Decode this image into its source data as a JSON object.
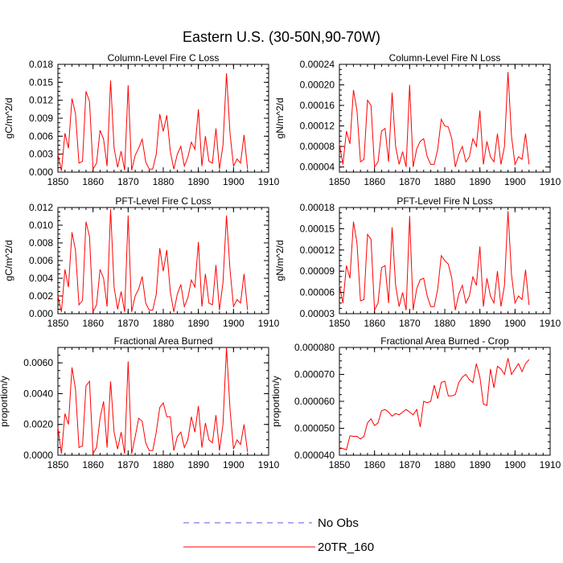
{
  "main_title": "Eastern U.S. (30-50N,90-70W)",
  "legend": [
    {
      "label": "No Obs",
      "color": "#5a5ae6",
      "dash": true
    },
    {
      "label": "20TR_160",
      "color": "#ff0000",
      "dash": false
    }
  ],
  "chart_data": [
    {
      "type": "line",
      "title": "Column-Level Fire C Loss",
      "ylabel": "gC/m^2/d",
      "xlim": [
        1850,
        1910
      ],
      "ylim": [
        0,
        0.018
      ],
      "xticks": [
        "1850",
        "1860",
        "1870",
        "1880",
        "1890",
        "1900",
        "1910"
      ],
      "yticks": [
        "0.000",
        "0.003",
        "0.006",
        "0.009",
        "0.012",
        "0.015",
        "0.018"
      ],
      "series": [
        {
          "name": "20TR_160",
          "color": "#ff0000",
          "x": [
            1850,
            1851,
            1852,
            1853,
            1854,
            1855,
            1856,
            1857,
            1858,
            1859,
            1860,
            1861,
            1862,
            1863,
            1864,
            1865,
            1866,
            1867,
            1868,
            1869,
            1870,
            1871,
            1872,
            1873,
            1874,
            1875,
            1876,
            1877,
            1878,
            1879,
            1880,
            1881,
            1882,
            1883,
            1884,
            1885,
            1886,
            1887,
            1888,
            1889,
            1890,
            1891,
            1892,
            1893,
            1894,
            1895,
            1896,
            1897,
            1898,
            1899,
            1900,
            1901,
            1902,
            1903,
            1904
          ],
          "y": [
            0.003,
            0.0002,
            0.0065,
            0.004,
            0.0123,
            0.0098,
            0.0015,
            0.0018,
            0.0135,
            0.0118,
            0.0005,
            0.0015,
            0.007,
            0.0055,
            0.001,
            0.0153,
            0.004,
            0.0008,
            0.0035,
            0.0003,
            0.0145,
            0.0003,
            0.0028,
            0.004,
            0.0055,
            0.0017,
            0.0005,
            0.0005,
            0.003,
            0.0097,
            0.0068,
            0.0095,
            0.0035,
            0.0005,
            0.003,
            0.0043,
            0.001,
            0.0025,
            0.005,
            0.0038,
            0.0105,
            0.001,
            0.006,
            0.0018,
            0.0015,
            0.0073,
            0.0005,
            0.0045,
            0.0165,
            0.0065,
            0.001,
            0.0022,
            0.0015,
            0.0062,
            0.0005
          ]
        }
      ]
    },
    {
      "type": "line",
      "title": "Column-Level Fire N Loss",
      "ylabel": "gN/m^2/d",
      "xlim": [
        1850,
        1910
      ],
      "ylim": [
        3e-05,
        0.00024
      ],
      "xticks": [
        "1850",
        "1860",
        "1870",
        "1880",
        "1890",
        "1900",
        "1910"
      ],
      "yticks": [
        "0.00004",
        "0.00008",
        "0.00012",
        "0.00016",
        "0.00020",
        "0.00024"
      ],
      "series": [
        {
          "name": "20TR_160",
          "color": "#ff0000",
          "x": [
            1850,
            1851,
            1852,
            1853,
            1854,
            1855,
            1856,
            1857,
            1858,
            1859,
            1860,
            1861,
            1862,
            1863,
            1864,
            1865,
            1866,
            1867,
            1868,
            1869,
            1870,
            1871,
            1872,
            1873,
            1874,
            1875,
            1876,
            1877,
            1878,
            1879,
            1880,
            1881,
            1882,
            1883,
            1884,
            1885,
            1886,
            1887,
            1888,
            1889,
            1890,
            1891,
            1892,
            1893,
            1894,
            1895,
            1896,
            1897,
            1898,
            1899,
            1900,
            1901,
            1902,
            1903,
            1904
          ],
          "y": [
            8.5e-05,
            4.5e-05,
            0.00011,
            8.5e-05,
            0.00019,
            0.00015,
            5e-05,
            5.5e-05,
            0.00017,
            0.00016,
            4e-05,
            5e-05,
            0.00011,
            0.000115,
            5e-05,
            0.000185,
            8e-05,
            4.5e-05,
            7e-05,
            4e-05,
            0.0002,
            4e-05,
            7.5e-05,
            9e-05,
            9.5e-05,
            6e-05,
            4.5e-05,
            4.5e-05,
            7.5e-05,
            0.000133,
            0.00012,
            0.000118,
            9.5e-05,
            4e-05,
            6.5e-05,
            8e-05,
            5e-05,
            6e-05,
            9.5e-05,
            8e-05,
            0.00015,
            4.5e-05,
            9e-05,
            6e-05,
            5e-05,
            0.000105,
            4.5e-05,
            8e-05,
            0.000225,
            0.0001,
            4.5e-05,
            6e-05,
            5.5e-05,
            0.000105,
            4.5e-05
          ]
        }
      ]
    },
    {
      "type": "line",
      "title": "PFT-Level Fire C Loss",
      "ylabel": "gC/m^2/d",
      "xlim": [
        1850,
        1910
      ],
      "ylim": [
        0,
        0.012
      ],
      "xticks": [
        "1850",
        "1860",
        "1870",
        "1880",
        "1890",
        "1900",
        "1910"
      ],
      "yticks": [
        "0.000",
        "0.002",
        "0.004",
        "0.006",
        "0.008",
        "0.010",
        "0.012"
      ],
      "series": [
        {
          "name": "20TR_160",
          "color": "#ff0000",
          "x": [
            1850,
            1851,
            1852,
            1853,
            1854,
            1855,
            1856,
            1857,
            1858,
            1859,
            1860,
            1861,
            1862,
            1863,
            1864,
            1865,
            1866,
            1867,
            1868,
            1869,
            1870,
            1871,
            1872,
            1873,
            1874,
            1875,
            1876,
            1877,
            1878,
            1879,
            1880,
            1881,
            1882,
            1883,
            1884,
            1885,
            1886,
            1887,
            1888,
            1889,
            1890,
            1891,
            1892,
            1893,
            1894,
            1895,
            1896,
            1897,
            1898,
            1899,
            1900,
            1901,
            1902,
            1903,
            1904
          ],
          "y": [
            0.002,
            0.0002,
            0.005,
            0.003,
            0.0092,
            0.0072,
            0.001,
            0.0015,
            0.0104,
            0.0087,
            0.0002,
            0.001,
            0.005,
            0.004,
            0.0008,
            0.0118,
            0.003,
            0.0005,
            0.0025,
            0.0002,
            0.0111,
            0.0002,
            0.002,
            0.0028,
            0.0042,
            0.0012,
            0.0004,
            0.0004,
            0.0022,
            0.0074,
            0.0048,
            0.0072,
            0.0025,
            0.0002,
            0.0022,
            0.0033,
            0.0008,
            0.0018,
            0.0038,
            0.003,
            0.0081,
            0.0008,
            0.0045,
            0.0012,
            0.001,
            0.0055,
            0.0004,
            0.0035,
            0.0111,
            0.005,
            0.0008,
            0.0016,
            0.0012,
            0.0045,
            0.0004
          ]
        }
      ]
    },
    {
      "type": "line",
      "title": "PFT-Level Fire N Loss",
      "ylabel": "gN/m^2/d",
      "xlim": [
        1850,
        1910
      ],
      "ylim": [
        3e-05,
        0.00018
      ],
      "xticks": [
        "1850",
        "1860",
        "1870",
        "1880",
        "1890",
        "1900",
        "1910"
      ],
      "yticks": [
        "0.00003",
        "0.00006",
        "0.00009",
        "0.00012",
        "0.00015",
        "0.00018"
      ],
      "series": [
        {
          "name": "20TR_160",
          "color": "#ff0000",
          "x": [
            1850,
            1851,
            1852,
            1853,
            1854,
            1855,
            1856,
            1857,
            1858,
            1859,
            1860,
            1861,
            1862,
            1863,
            1864,
            1865,
            1866,
            1867,
            1868,
            1869,
            1870,
            1871,
            1872,
            1873,
            1874,
            1875,
            1876,
            1877,
            1878,
            1879,
            1880,
            1881,
            1882,
            1883,
            1884,
            1885,
            1886,
            1887,
            1888,
            1889,
            1890,
            1891,
            1892,
            1893,
            1894,
            1895,
            1896,
            1897,
            1898,
            1899,
            1900,
            1901,
            1902,
            1903,
            1904
          ],
          "y": [
            7e-05,
            4.5e-05,
            9.8e-05,
            8e-05,
            0.00016,
            0.00013,
            4.8e-05,
            5e-05,
            0.000142,
            0.000135,
            3.5e-05,
            4.5e-05,
            9.5e-05,
            9.8e-05,
            4.5e-05,
            0.000152,
            7e-05,
            4e-05,
            6e-05,
            3.5e-05,
            0.000168,
            3.5e-05,
            6.5e-05,
            7.8e-05,
            8e-05,
            5.5e-05,
            4e-05,
            4e-05,
            6.5e-05,
            0.000112,
            0.000105,
            0.0001,
            8e-05,
            3.5e-05,
            5.8e-05,
            7e-05,
            4.5e-05,
            5.5e-05,
            8.2e-05,
            7e-05,
            0.000125,
            4e-05,
            8e-05,
            5.5e-05,
            4.5e-05,
            9e-05,
            4e-05,
            7e-05,
            0.000175,
            8.5e-05,
            4.5e-05,
            5.5e-05,
            5e-05,
            9.2e-05,
            4.2e-05
          ]
        }
      ]
    },
    {
      "type": "line",
      "title": "Fractional Area Burned",
      "ylabel": "proportion/y",
      "xlim": [
        1850,
        1910
      ],
      "ylim": [
        0,
        0.007
      ],
      "xticks": [
        "1850",
        "1860",
        "1870",
        "1880",
        "1890",
        "1900",
        "1910"
      ],
      "yticks": [
        "0.0000",
        "0.0020",
        "0.0040",
        "0.0060"
      ],
      "series": [
        {
          "name": "20TR_160",
          "color": "#ff0000",
          "x": [
            1850,
            1851,
            1852,
            1853,
            1854,
            1855,
            1856,
            1857,
            1858,
            1859,
            1860,
            1861,
            1862,
            1863,
            1864,
            1865,
            1866,
            1867,
            1868,
            1869,
            1870,
            1871,
            1872,
            1873,
            1874,
            1875,
            1876,
            1877,
            1878,
            1879,
            1880,
            1881,
            1882,
            1883,
            1884,
            1885,
            1886,
            1887,
            1888,
            1889,
            1890,
            1891,
            1892,
            1893,
            1894,
            1895,
            1896,
            1897,
            1898,
            1899,
            1900,
            1901,
            1902,
            1903,
            1904
          ],
          "y": [
            0.0018,
            0.0001,
            0.0027,
            0.002,
            0.0057,
            0.0043,
            0.0005,
            0.0006,
            0.0045,
            0.0048,
            0.0001,
            0.0005,
            0.0024,
            0.0035,
            0.0005,
            0.0048,
            0.0015,
            0.0004,
            0.0015,
            0.0001,
            0.0061,
            0.0001,
            0.0012,
            0.0024,
            0.0022,
            0.0008,
            0.0003,
            0.0003,
            0.0015,
            0.0031,
            0.0034,
            0.0025,
            0.0025,
            0.0003,
            0.0012,
            0.0015,
            0.0005,
            0.001,
            0.0025,
            0.0015,
            0.0032,
            0.0005,
            0.0021,
            0.001,
            0.0008,
            0.0026,
            0.0003,
            0.002,
            0.007,
            0.003,
            0.0004,
            0.001,
            0.0007,
            0.002,
            0.0002
          ]
        }
      ]
    },
    {
      "type": "line",
      "title": "Fractional Area Burned - Crop",
      "ylabel": "proportion/y",
      "xlim": [
        1850,
        1910
      ],
      "ylim": [
        4e-05,
        8e-05
      ],
      "xticks": [
        "1850",
        "1860",
        "1870",
        "1880",
        "1890",
        "1900",
        "1910"
      ],
      "yticks": [
        "0.000040",
        "0.000050",
        "0.000060",
        "0.000070",
        "0.000080"
      ],
      "series": [
        {
          "name": "20TR_160",
          "color": "#ff0000",
          "x": [
            1850,
            1851,
            1852,
            1853,
            1854,
            1855,
            1856,
            1857,
            1858,
            1859,
            1860,
            1861,
            1862,
            1863,
            1864,
            1865,
            1866,
            1867,
            1868,
            1869,
            1870,
            1871,
            1872,
            1873,
            1874,
            1875,
            1876,
            1877,
            1878,
            1879,
            1880,
            1881,
            1882,
            1883,
            1884,
            1885,
            1886,
            1887,
            1888,
            1889,
            1890,
            1891,
            1892,
            1893,
            1894,
            1895,
            1896,
            1897,
            1898,
            1899,
            1900,
            1901,
            1902,
            1903,
            1904
          ],
          "y": [
            4.28e-05,
            4.25e-05,
            4.2e-05,
            4.72e-05,
            4.7e-05,
            4.7e-05,
            4.6e-05,
            4.7e-05,
            5.2e-05,
            5.35e-05,
            5.1e-05,
            5.2e-05,
            5.65e-05,
            5.7e-05,
            5.6e-05,
            5.45e-05,
            5.55e-05,
            5.5e-05,
            5.6e-05,
            5.7e-05,
            5.6e-05,
            5.5e-05,
            5.7e-05,
            5.05e-05,
            6e-05,
            5.95e-05,
            6e-05,
            6.6e-05,
            6.1e-05,
            6.7e-05,
            6.75e-05,
            6.2e-05,
            6.2e-05,
            6.25e-05,
            6.7e-05,
            6.9e-05,
            7e-05,
            6.8e-05,
            6.7e-05,
            7.4e-05,
            6.9e-05,
            5.9e-05,
            5.85e-05,
            7.2e-05,
            6.5e-05,
            7.3e-05,
            7.2e-05,
            7e-05,
            7.6e-05,
            7e-05,
            7.2e-05,
            7.4e-05,
            7.1e-05,
            7.4e-05,
            7.55e-05
          ]
        }
      ]
    }
  ]
}
